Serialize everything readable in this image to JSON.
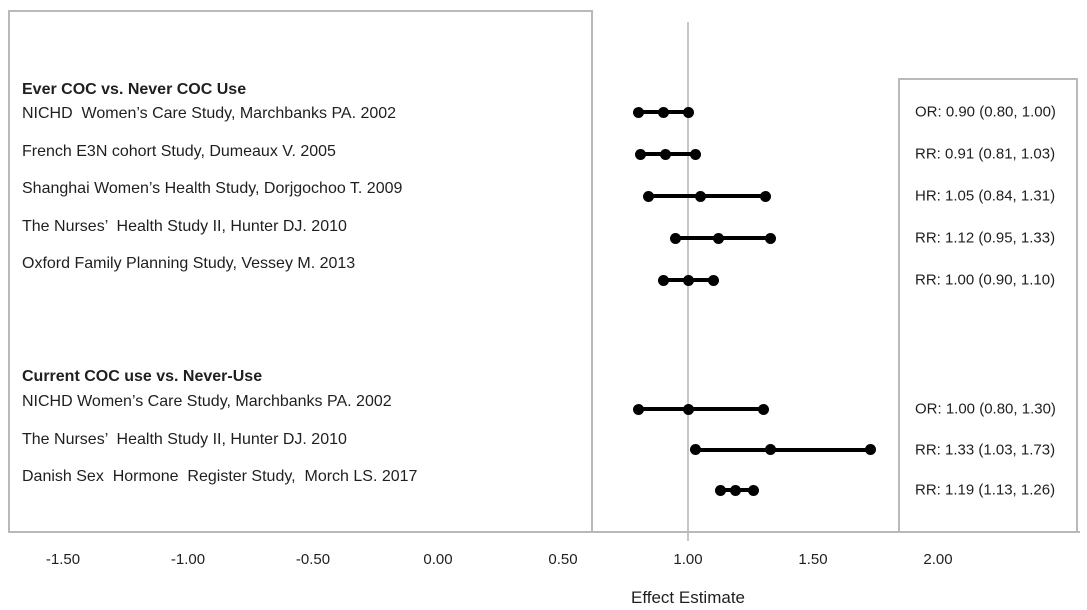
{
  "chart_data": {
    "type": "scatter",
    "subtype": "forest_plot",
    "title": "",
    "xlabel": "Effect Estimate",
    "x_axis": {
      "label": "Effect Estimate",
      "xlim": [
        -1.72,
        2.57
      ],
      "reference_line": 1.0,
      "grid": "single vertical reference line at 1.00",
      "ticks": [
        {
          "value": -1.5,
          "label": "-1.50"
        },
        {
          "value": -1.0,
          "label": "-1.00"
        },
        {
          "value": -0.5,
          "label": "-0.50"
        },
        {
          "value": 0.0,
          "label": "0.00"
        },
        {
          "value": 0.5,
          "label": "0.50"
        },
        {
          "value": 1.0,
          "label": "1.00"
        },
        {
          "value": 1.5,
          "label": "1.50"
        },
        {
          "value": 2.0,
          "label": "2.00"
        }
      ]
    },
    "groups": [
      {
        "header": "Ever COC vs. Never COC Use",
        "studies": [
          {
            "label": "NICHD  Women’s Care Study, Marchbanks PA. 2002",
            "measure": "OR",
            "estimate": 0.9,
            "ci_lower": 0.8,
            "ci_upper": 1.0,
            "estimate_label": "OR: 0.90 (0.80, 1.00)"
          },
          {
            "label": "French E3N cohort Study, Dumeaux V. 2005",
            "measure": "RR",
            "estimate": 0.91,
            "ci_lower": 0.81,
            "ci_upper": 1.03,
            "estimate_label": "RR: 0.91 (0.81, 1.03)"
          },
          {
            "label": "Shanghai Women’s Health Study, Dorjgochoo T. 2009",
            "measure": "HR",
            "estimate": 1.05,
            "ci_lower": 0.84,
            "ci_upper": 1.31,
            "estimate_label": "HR: 1.05 (0.84, 1.31)"
          },
          {
            "label": "The Nurses’  Health Study II, Hunter DJ. 2010",
            "measure": "RR",
            "estimate": 1.12,
            "ci_lower": 0.95,
            "ci_upper": 1.33,
            "estimate_label": "RR: 1.12 (0.95, 1.33)"
          },
          {
            "label": "Oxford Family Planning Study, Vessey M. 2013",
            "measure": "RR",
            "estimate": 1.0,
            "ci_lower": 0.9,
            "ci_upper": 1.1,
            "estimate_label": "RR: 1.00 (0.90, 1.10)"
          }
        ]
      },
      {
        "header": "Current COC use vs. Never-Use",
        "studies": [
          {
            "label": "NICHD Women’s Care Study, Marchbanks PA. 2002",
            "measure": "OR",
            "estimate": 1.0,
            "ci_lower": 0.8,
            "ci_upper": 1.3,
            "estimate_label": "OR: 1.00 (0.80, 1.30)"
          },
          {
            "label": "The Nurses’  Health Study II, Hunter DJ. 2010",
            "measure": "RR",
            "estimate": 1.33,
            "ci_lower": 1.03,
            "ci_upper": 1.73,
            "estimate_label": "RR: 1.33 (1.03, 1.73)"
          },
          {
            "label": "Danish Sex  Hormone  Register Study,  Morch LS. 2017",
            "measure": "RR",
            "estimate": 1.19,
            "ci_lower": 1.13,
            "ci_upper": 1.26,
            "estimate_label": "RR: 1.19 (1.13, 1.26)"
          }
        ]
      }
    ],
    "colors": {
      "marker": "#000000",
      "panel_border": "#b9b9b9",
      "reference_line": "#c6c6c6",
      "text": "#1f1f1f"
    }
  }
}
